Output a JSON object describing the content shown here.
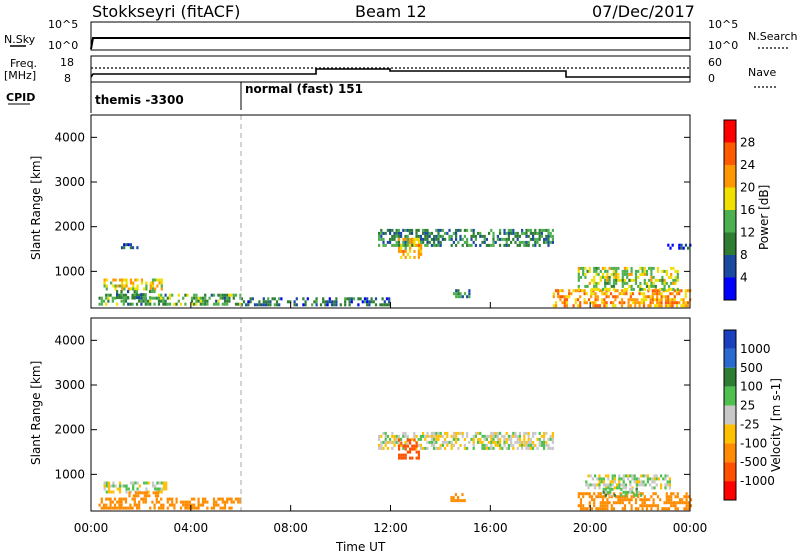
{
  "header": {
    "station": "Stokkseyri (fitACF)",
    "beam": "Beam 12",
    "date": "07/Dec/2017"
  },
  "top_panels": {
    "nsky_label": "N.Sky",
    "nsearch_label": "N.Search",
    "noise_ticks": [
      "10^5",
      "10^0"
    ],
    "freq_label": "Freq.",
    "freq_unit": "[MHz]",
    "freq_ticks": [
      "18",
      "8"
    ],
    "nave_label": "Nave",
    "nave_ticks": [
      "60",
      "0"
    ],
    "cpid_label": "CPID",
    "cpid_segments": [
      "themis -3300",
      "normal (fast) 151"
    ]
  },
  "colors": {
    "power_scale": [
      "#0000ff",
      "#1a4aa0",
      "#2e7d32",
      "#4caf50",
      "#f0e000",
      "#ff9800",
      "#ff5a00",
      "#ff0000"
    ],
    "velocity_scale": [
      "#1a3fbf",
      "#2a6ad0",
      "#2e7d32",
      "#4fc04f",
      "#c8c8c8",
      "#ffc000",
      "#ff8c00",
      "#ff5000",
      "#ff0000"
    ]
  },
  "chart_data": [
    {
      "type": "heatmap",
      "title": "Power",
      "xlabel": "",
      "ylabel": "Slant Range [km]",
      "xlim": [
        "00:00",
        "24:00"
      ],
      "ylim": [
        180,
        4500
      ],
      "x_ticks": [
        "00:00",
        "04:00",
        "08:00",
        "12:00",
        "16:00",
        "20:00",
        "00:00"
      ],
      "y_ticks": [
        "1000",
        "2000",
        "3000",
        "4000"
      ],
      "colorbar_label": "Power [dB]",
      "colorbar_ticks": [
        "4",
        "8",
        "12",
        "16",
        "20",
        "24",
        "28"
      ],
      "colorbar_range": [
        0,
        32
      ],
      "regions": [
        {
          "x": [
            0.3,
            6.0
          ],
          "y": [
            250,
            500
          ],
          "value": 12
        },
        {
          "x": [
            0.5,
            2.8
          ],
          "y": [
            620,
            840
          ],
          "value": 18
        },
        {
          "x": [
            1.0,
            2.5
          ],
          "y": [
            420,
            580
          ],
          "value": 10
        },
        {
          "x": [
            1.2,
            1.9
          ],
          "y": [
            1560,
            1630
          ],
          "value": 6
        },
        {
          "x": [
            6.0,
            12.0
          ],
          "y": [
            220,
            420
          ],
          "value": 8
        },
        {
          "x": [
            11.5,
            18.5
          ],
          "y": [
            1550,
            1950
          ],
          "value": 10
        },
        {
          "x": [
            12.3,
            13.2
          ],
          "y": [
            1300,
            1750
          ],
          "value": 20
        },
        {
          "x": [
            14.5,
            15.2
          ],
          "y": [
            400,
            600
          ],
          "value": 10
        },
        {
          "x": [
            18.5,
            24.0
          ],
          "y": [
            250,
            600
          ],
          "value": 22
        },
        {
          "x": [
            19.5,
            23.5
          ],
          "y": [
            600,
            1100
          ],
          "value": 16
        },
        {
          "x": [
            23.0,
            24.0
          ],
          "y": [
            1550,
            1620
          ],
          "value": 6
        }
      ]
    },
    {
      "type": "heatmap",
      "title": "Velocity",
      "xlabel": "Time UT",
      "ylabel": "Slant Range [km]",
      "xlim": [
        "00:00",
        "24:00"
      ],
      "ylim": [
        180,
        4500
      ],
      "x_ticks": [
        "00:00",
        "04:00",
        "08:00",
        "12:00",
        "16:00",
        "20:00",
        "00:00"
      ],
      "y_ticks": [
        "1000",
        "2000",
        "3000",
        "4000"
      ],
      "colorbar_label": "Velocity [m s-1]",
      "colorbar_ticks": [
        "1000",
        "500",
        "100",
        "25",
        "-25",
        "-100",
        "-500",
        "-1000"
      ],
      "regions": [
        {
          "x": [
            0.3,
            6.0
          ],
          "y": [
            250,
            480
          ],
          "value": -200
        },
        {
          "x": [
            0.5,
            3.0
          ],
          "y": [
            620,
            840
          ],
          "value": 0
        },
        {
          "x": [
            1.5,
            2.8
          ],
          "y": [
            500,
            620
          ],
          "value": -150
        },
        {
          "x": [
            11.5,
            18.5
          ],
          "y": [
            1550,
            1950
          ],
          "value": 0
        },
        {
          "x": [
            12.3,
            13.1
          ],
          "y": [
            1350,
            1800
          ],
          "value": -900
        },
        {
          "x": [
            14.4,
            15.0
          ],
          "y": [
            400,
            580
          ],
          "value": -300
        },
        {
          "x": [
            19.5,
            24.0
          ],
          "y": [
            250,
            600
          ],
          "value": -300
        },
        {
          "x": [
            19.8,
            23.2
          ],
          "y": [
            700,
            1000
          ],
          "value": 0
        },
        {
          "x": [
            20.5,
            22.0
          ],
          "y": [
            550,
            700
          ],
          "value": 50
        }
      ]
    }
  ]
}
